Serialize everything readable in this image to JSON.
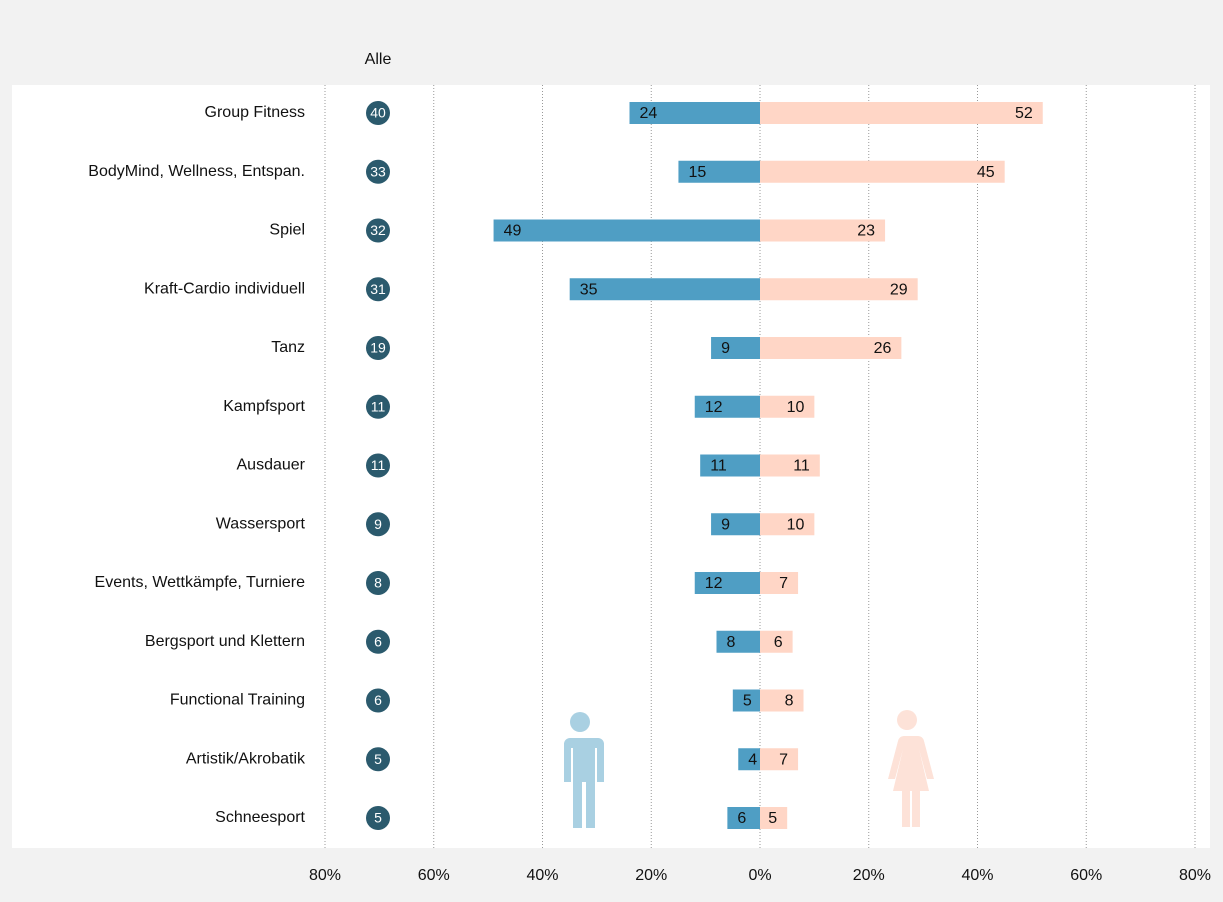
{
  "chart_data": {
    "type": "butterfly",
    "categories": [
      "Group Fitness",
      "BodyMind, Wellness, Entspan.",
      "Spiel",
      "Kraft-Cardio individuell",
      "Tanz",
      "Kampfsport",
      "Ausdauer",
      "Wassersport",
      "Events, Wettkämpfe, Turniere",
      "Bergsport und Klettern",
      "Functional Training",
      "Artistik/Akrobatik",
      "Schneesport"
    ],
    "total": {
      "label": "Alle",
      "color": "#2b5a6d",
      "values": [
        40,
        33,
        32,
        31,
        19,
        11,
        11,
        9,
        8,
        6,
        6,
        5,
        5
      ]
    },
    "series": [
      {
        "side": "left",
        "color": "#4f9ec4",
        "values": [
          24,
          15,
          49,
          35,
          9,
          12,
          11,
          9,
          12,
          8,
          5,
          4,
          6
        ]
      },
      {
        "side": "right",
        "color": "#ffd6c6",
        "values": [
          52,
          45,
          23,
          29,
          26,
          10,
          11,
          10,
          7,
          6,
          8,
          7,
          5
        ]
      }
    ],
    "xlim": [
      -80,
      80
    ],
    "xticks": [
      {
        "value": -80,
        "label": "80%"
      },
      {
        "value": -60,
        "label": "60%"
      },
      {
        "value": -40,
        "label": "40%"
      },
      {
        "value": -20,
        "label": "20%"
      },
      {
        "value": 0,
        "label": "0%"
      },
      {
        "value": 20,
        "label": "20%"
      },
      {
        "value": 40,
        "label": "40%"
      },
      {
        "value": 60,
        "label": "60%"
      },
      {
        "value": 80,
        "label": "80%"
      }
    ],
    "grid": true
  }
}
